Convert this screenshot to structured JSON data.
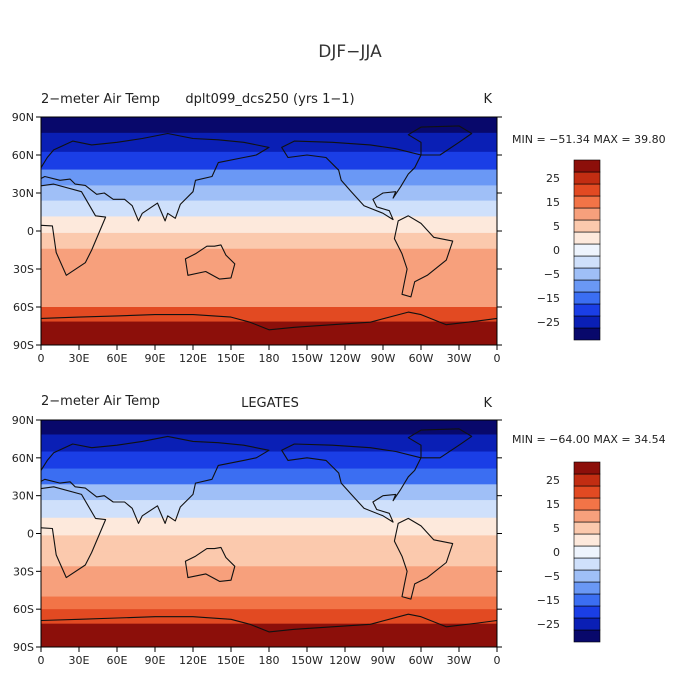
{
  "figure_title": "DJF−JJA",
  "chart_data": [
    {
      "type": "heatmap",
      "panel": "top",
      "variable_label": "2−meter Air Temp",
      "dataset_label": "dplt099_dcs250 (yrs 1−1)",
      "units": "K",
      "stats_text": "MIN = −51.34  MAX =   39.80",
      "min": -51.34,
      "max": 39.8,
      "y_ticks": [
        "90N",
        "60N",
        "30N",
        "0",
        "30S",
        "60S",
        "90S"
      ],
      "x_ticks": [
        "0",
        "30E",
        "60E",
        "90E",
        "120E",
        "150E",
        "180",
        "150W",
        "120W",
        "90W",
        "60W",
        "30W",
        "0"
      ],
      "lat_bands": [
        {
          "lat": 85,
          "value": -32
        },
        {
          "lat": 70,
          "value": -28
        },
        {
          "lat": 55,
          "value": -22
        },
        {
          "lat": 42,
          "value": -14
        },
        {
          "lat": 30,
          "value": -8
        },
        {
          "lat": 18,
          "value": -3
        },
        {
          "lat": 5,
          "value": 1
        },
        {
          "lat": -8,
          "value": 4
        },
        {
          "lat": -20,
          "value": 6
        },
        {
          "lat": -32,
          "value": 7
        },
        {
          "lat": -45,
          "value": 8
        },
        {
          "lat": -55,
          "value": 10
        },
        {
          "lat": -65,
          "value": 18
        },
        {
          "lat": -78,
          "value": 28
        }
      ]
    },
    {
      "type": "heatmap",
      "panel": "bottom",
      "variable_label": "2−meter Air Temp",
      "dataset_label": "LEGATES",
      "units": "K",
      "stats_text": "MIN = −64.00  MAX =   34.54",
      "min": -64.0,
      "max": 34.54,
      "y_ticks": [
        "90N",
        "60N",
        "30N",
        "0",
        "30S",
        "60S",
        "90S"
      ],
      "x_ticks": [
        "0",
        "30E",
        "60E",
        "90E",
        "120E",
        "150E",
        "180",
        "150W",
        "120W",
        "90W",
        "60W",
        "30W",
        "0"
      ],
      "lat_bands": [
        {
          "lat": 85,
          "value": -32
        },
        {
          "lat": 72,
          "value": -28
        },
        {
          "lat": 58,
          "value": -22
        },
        {
          "lat": 45,
          "value": -15
        },
        {
          "lat": 33,
          "value": -9
        },
        {
          "lat": 20,
          "value": -3
        },
        {
          "lat": 5,
          "value": 1
        },
        {
          "lat": -8,
          "value": 3
        },
        {
          "lat": -20,
          "value": 5
        },
        {
          "lat": -32,
          "value": 6
        },
        {
          "lat": -45,
          "value": 7
        },
        {
          "lat": -55,
          "value": 11
        },
        {
          "lat": -65,
          "value": 20
        },
        {
          "lat": -78,
          "value": 27
        }
      ]
    }
  ],
  "colorbar": {
    "levels": [
      -30,
      -25,
      -20,
      -15,
      -10,
      -5,
      -2,
      0,
      2,
      5,
      10,
      15,
      20,
      25,
      30
    ],
    "tick_labels": [
      "25",
      "15",
      "5",
      "0",
      "−5",
      "−15",
      "−25"
    ],
    "tick_values": [
      25,
      15,
      5,
      0,
      -5,
      -15,
      -25
    ],
    "colors": [
      "#08086b",
      "#0a1fb5",
      "#1a3ee6",
      "#3b6ef2",
      "#6a98f5",
      "#9fbff7",
      "#cfe0fb",
      "#eef4fd",
      "#fde9dc",
      "#fbc9ad",
      "#f7a07c",
      "#f27447",
      "#e24a22",
      "#c22d12",
      "#8c0f0a"
    ]
  }
}
